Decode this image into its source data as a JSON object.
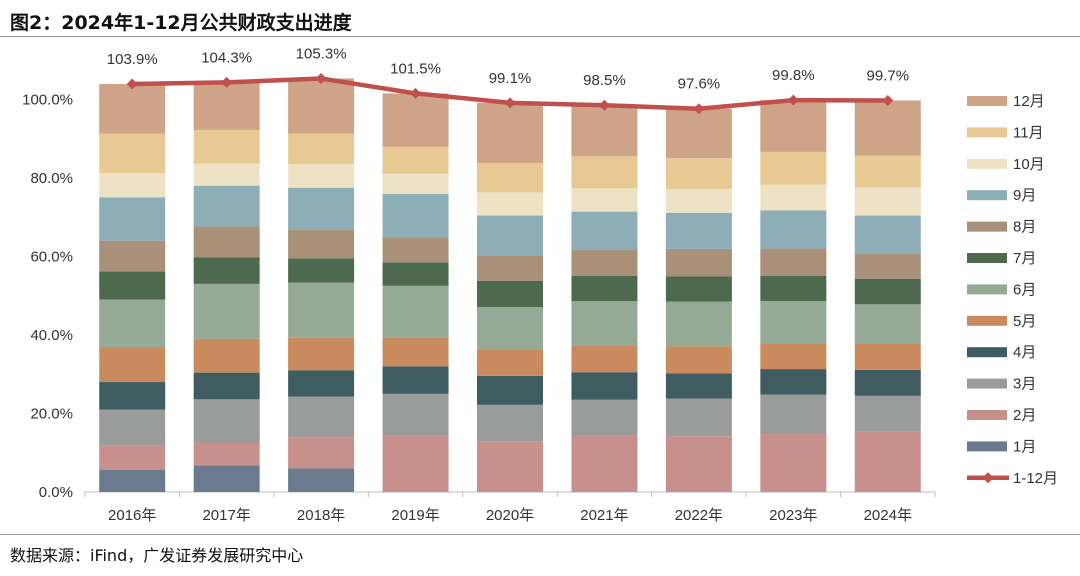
{
  "header": {
    "title": "图2：2024年1-12月公共财政支出进度"
  },
  "footer": {
    "source": "数据来源：iFind，广发证券发展研究中心"
  },
  "chart_data": {
    "type": "bar",
    "stacked": true,
    "title": "图2：2024年1-12月公共财政支出进度",
    "categories": [
      "2016年",
      "2017年",
      "2018年",
      "2019年",
      "2020年",
      "2021年",
      "2022年",
      "2023年",
      "2024年"
    ],
    "ylim": [
      0,
      100
    ],
    "yticks": [
      0,
      20,
      40,
      60,
      80,
      100
    ],
    "ytick_labels": [
      "0.0%",
      "20.0%",
      "40.0%",
      "60.0%",
      "80.0%",
      "100.0%"
    ],
    "grid": false,
    "legend_position": "right",
    "series": [
      {
        "name": "1月",
        "color": "#6b7a8f",
        "values": [
          5.6,
          6.8,
          6.0,
          0,
          0,
          0,
          0,
          0,
          0
        ]
      },
      {
        "name": "2月",
        "color": "#c8908c",
        "values": [
          6.2,
          5.8,
          7.8,
          14.4,
          12.9,
          14.4,
          14.2,
          14.9,
          15.3
        ]
      },
      {
        "name": "3月",
        "color": "#9a9c9c",
        "values": [
          9.2,
          11.0,
          10.5,
          10.6,
          9.3,
          9.1,
          9.6,
          9.9,
          9.2
        ]
      },
      {
        "name": "4月",
        "color": "#3f5c60",
        "values": [
          7.0,
          6.8,
          6.7,
          7.0,
          7.4,
          7.0,
          6.4,
          6.5,
          6.6
        ]
      },
      {
        "name": "5月",
        "color": "#c98a5e",
        "values": [
          8.8,
          8.6,
          8.3,
          7.4,
          6.7,
          6.9,
          6.9,
          6.5,
          6.7
        ]
      },
      {
        "name": "6月",
        "color": "#94aa96",
        "values": [
          12.2,
          14.0,
          14.0,
          13.1,
          10.8,
          11.2,
          11.4,
          10.8,
          10.0
        ]
      },
      {
        "name": "7月",
        "color": "#4e6a4e",
        "values": [
          7.2,
          6.8,
          6.2,
          6.0,
          6.7,
          6.4,
          6.4,
          6.4,
          6.5
        ]
      },
      {
        "name": "8月",
        "color": "#a99079",
        "values": [
          7.8,
          7.8,
          7.2,
          6.4,
          6.4,
          6.8,
          7.0,
          7.0,
          6.3
        ]
      },
      {
        "name": "9月",
        "color": "#8eaeb7",
        "values": [
          11.0,
          10.4,
          10.8,
          11.0,
          10.2,
          9.6,
          9.2,
          9.7,
          9.8
        ]
      },
      {
        "name": "10月",
        "color": "#eee2c4",
        "values": [
          6.2,
          5.6,
          6.0,
          5.2,
          5.9,
          5.9,
          6.1,
          6.6,
          7.1
        ]
      },
      {
        "name": "11月",
        "color": "#e8c993",
        "values": [
          10.0,
          8.6,
          7.8,
          6.8,
          7.5,
          8.2,
          7.8,
          8.3,
          8.2
        ]
      },
      {
        "name": "12月",
        "color": "#cfa387",
        "values": [
          12.7,
          12.1,
          14.0,
          13.6,
          15.3,
          13.0,
          12.6,
          13.2,
          14.0
        ]
      }
    ],
    "line": {
      "name": "1-12月",
      "color": "#c0504d",
      "values": [
        103.9,
        104.3,
        105.3,
        101.5,
        99.1,
        98.5,
        97.6,
        99.8,
        99.7
      ],
      "labels": [
        "103.9%",
        "104.3%",
        "105.3%",
        "101.5%",
        "99.1%",
        "98.5%",
        "97.6%",
        "99.8%",
        "99.7%"
      ]
    }
  }
}
